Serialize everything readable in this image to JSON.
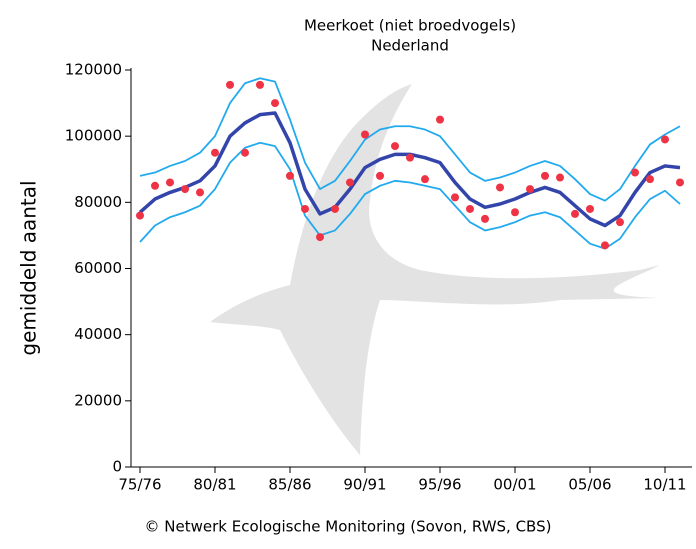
{
  "chart_data": {
    "type": "line",
    "title": "Meerkoet (niet broedvogels)",
    "subtitle": "Nederland",
    "ylabel": "gemiddeld aantal",
    "footer": "© Netwerk Ecologische Monitoring (Sovon, RWS, CBS)",
    "categories": [
      "75/76",
      null,
      null,
      null,
      null,
      "80/81",
      null,
      null,
      null,
      null,
      "85/86",
      null,
      null,
      null,
      null,
      "90/91",
      null,
      null,
      null,
      null,
      "95/96",
      null,
      null,
      null,
      null,
      "00/01",
      null,
      null,
      null,
      null,
      "05/06",
      null,
      null,
      null,
      null,
      "10/11",
      null
    ],
    "ylim": [
      0,
      120000
    ],
    "yticks": [
      0,
      20000,
      40000,
      60000,
      80000,
      100000,
      120000
    ],
    "series": [
      {
        "style": "line",
        "color": "#22aaee",
        "values": [
          88000,
          89000,
          91000,
          92500,
          95000,
          100000,
          110000,
          116000,
          117500,
          116500,
          105000,
          92000,
          84000,
          86500,
          92500,
          99000,
          102000,
          103000,
          103000,
          102000,
          100000,
          94500,
          89000,
          86500,
          87500,
          89000,
          91000,
          92500,
          91000,
          87000,
          82500,
          80500,
          84000,
          91000,
          97500,
          100500,
          103000
        ]
      },
      {
        "style": "line",
        "color": "#22aaee",
        "values": [
          68000,
          73000,
          75500,
          77000,
          79000,
          84000,
          92000,
          96500,
          98000,
          97000,
          90000,
          76000,
          70000,
          71500,
          76500,
          82500,
          85000,
          86500,
          86000,
          85000,
          84000,
          79000,
          74000,
          71500,
          72500,
          74000,
          76000,
          77000,
          75500,
          71500,
          67500,
          66000,
          69000,
          75500,
          81000,
          83500,
          79500
        ]
      },
      {
        "style": "line",
        "color": "#3344aa",
        "values": [
          77000,
          81000,
          83000,
          84500,
          86500,
          91000,
          100000,
          104000,
          106500,
          107000,
          98000,
          84000,
          76500,
          78500,
          84000,
          90500,
          93000,
          94500,
          94500,
          93500,
          92000,
          86000,
          81000,
          78500,
          79500,
          81000,
          83000,
          84500,
          83000,
          79000,
          75000,
          73000,
          76000,
          83000,
          89000,
          91000,
          90500
        ]
      },
      {
        "style": "points",
        "color": "#ee3344",
        "values": [
          76000,
          85000,
          86000,
          84000,
          83000,
          95000,
          115500,
          95000,
          115500,
          110000,
          88000,
          78000,
          69500,
          78000,
          86000,
          100500,
          88000,
          97000,
          93500,
          87000,
          105000,
          81500,
          78000,
          75000,
          84500,
          77000,
          84000,
          88000,
          87500,
          76500,
          78000,
          67000,
          74000,
          89000,
          87000,
          99000,
          86000
        ]
      }
    ]
  }
}
